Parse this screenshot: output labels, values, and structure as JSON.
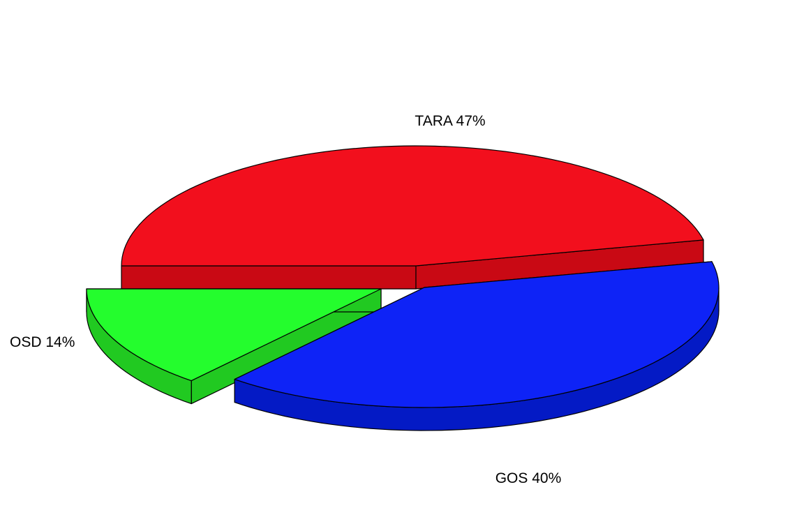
{
  "chart_data": {
    "type": "pie",
    "style": "3d-exploded",
    "title": "",
    "slices": [
      {
        "label": "TARA 47%",
        "value": 47,
        "top_color": "#f20f1d",
        "side_color": "#c90914",
        "exploded": false
      },
      {
        "label": "GOS 40%",
        "value": 40,
        "top_color": "#0e23f6",
        "side_color": "#041ac5",
        "exploded": true
      },
      {
        "label": "OSD 14%",
        "value": 14,
        "top_color": "#24fd2d",
        "side_color": "#21c921",
        "exploded": true
      }
    ],
    "legend": "none"
  }
}
